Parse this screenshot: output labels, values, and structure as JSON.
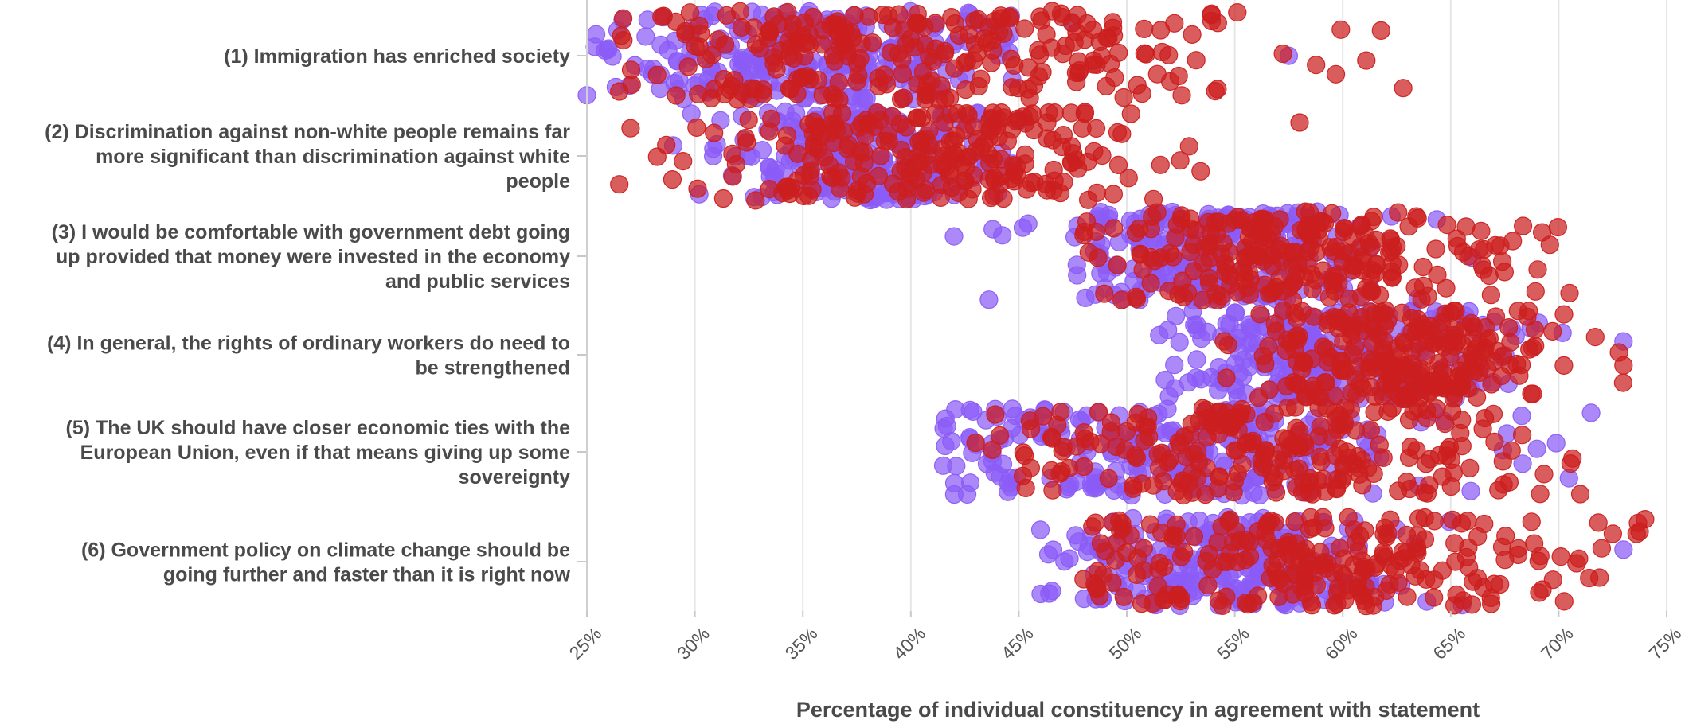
{
  "chart_data": {
    "type": "scatter",
    "subtype": "jittered-strip",
    "title": "",
    "xlabel": "Percentage of individual constituency in agreement with statement",
    "ylabel": "",
    "xlim": [
      25,
      75
    ],
    "x_ticks": [
      "25%",
      "30%",
      "35%",
      "40%",
      "45%",
      "50%",
      "55%",
      "60%",
      "65%",
      "70%",
      "75%"
    ],
    "grid": "vertical",
    "legend": "none",
    "colors": {
      "series_a": "#8b5cf6",
      "series_b": "#cc1f1f"
    },
    "categories": [
      {
        "label_lines": [
          "(1) Immigration has enriched society"
        ],
        "series": [
          {
            "color": "#8b5cf6",
            "min": 25,
            "max": 57.5,
            "center": 35.5,
            "spread": 4.5,
            "count": 260
          },
          {
            "color": "#cc1f1f",
            "min": 26.5,
            "max": 62.8,
            "center": 40,
            "spread": 7.5,
            "count": 260
          }
        ]
      },
      {
        "label_lines": [
          "(2) Discrimination against non-white people remains far",
          "more significant than discrimination against white",
          "people"
        ],
        "series": [
          {
            "color": "#8b5cf6",
            "min": 29,
            "max": 45,
            "center": 38,
            "spread": 3,
            "count": 240
          },
          {
            "color": "#cc1f1f",
            "min": 26.5,
            "max": 58,
            "center": 41,
            "spread": 5,
            "count": 240
          }
        ]
      },
      {
        "label_lines": [
          "(3) I would be comfortable with government debt going",
          "up provided that money were invested in the economy",
          "and public services"
        ],
        "series": [
          {
            "color": "#8b5cf6",
            "min": 42,
            "max": 66,
            "center": 53.5,
            "spread": 4,
            "count": 240
          },
          {
            "color": "#cc1f1f",
            "min": 48,
            "max": 70.5,
            "center": 58,
            "spread": 5,
            "count": 240
          }
        ]
      },
      {
        "label_lines": [
          "(4) In general, the rights of ordinary workers do need to",
          "be strengthened"
        ],
        "series": [
          {
            "color": "#8b5cf6",
            "min": 51.5,
            "max": 73,
            "center": 59,
            "spread": 4,
            "count": 240
          },
          {
            "color": "#cc1f1f",
            "min": 54.5,
            "max": 73,
            "center": 63,
            "spread": 3.5,
            "count": 240
          }
        ]
      },
      {
        "label_lines": [
          "(5) The UK should have closer economic ties with the",
          "European Union, even if that means giving up some",
          "sovereignty"
        ],
        "series": [
          {
            "color": "#8b5cf6",
            "min": 41.5,
            "max": 71.5,
            "center": 52,
            "spread": 6.5,
            "count": 240
          },
          {
            "color": "#cc1f1f",
            "min": 43,
            "max": 71,
            "center": 57,
            "spread": 6.5,
            "count": 240
          }
        ]
      },
      {
        "label_lines": [
          "(6) Government policy on climate change should be",
          "going further and faster than it is right now"
        ],
        "series": [
          {
            "color": "#8b5cf6",
            "min": 46,
            "max": 73,
            "center": 55,
            "spread": 4,
            "count": 240
          },
          {
            "color": "#cc1f1f",
            "min": 48,
            "max": 74,
            "center": 59,
            "spread": 6.5,
            "count": 240
          }
        ]
      }
    ]
  }
}
